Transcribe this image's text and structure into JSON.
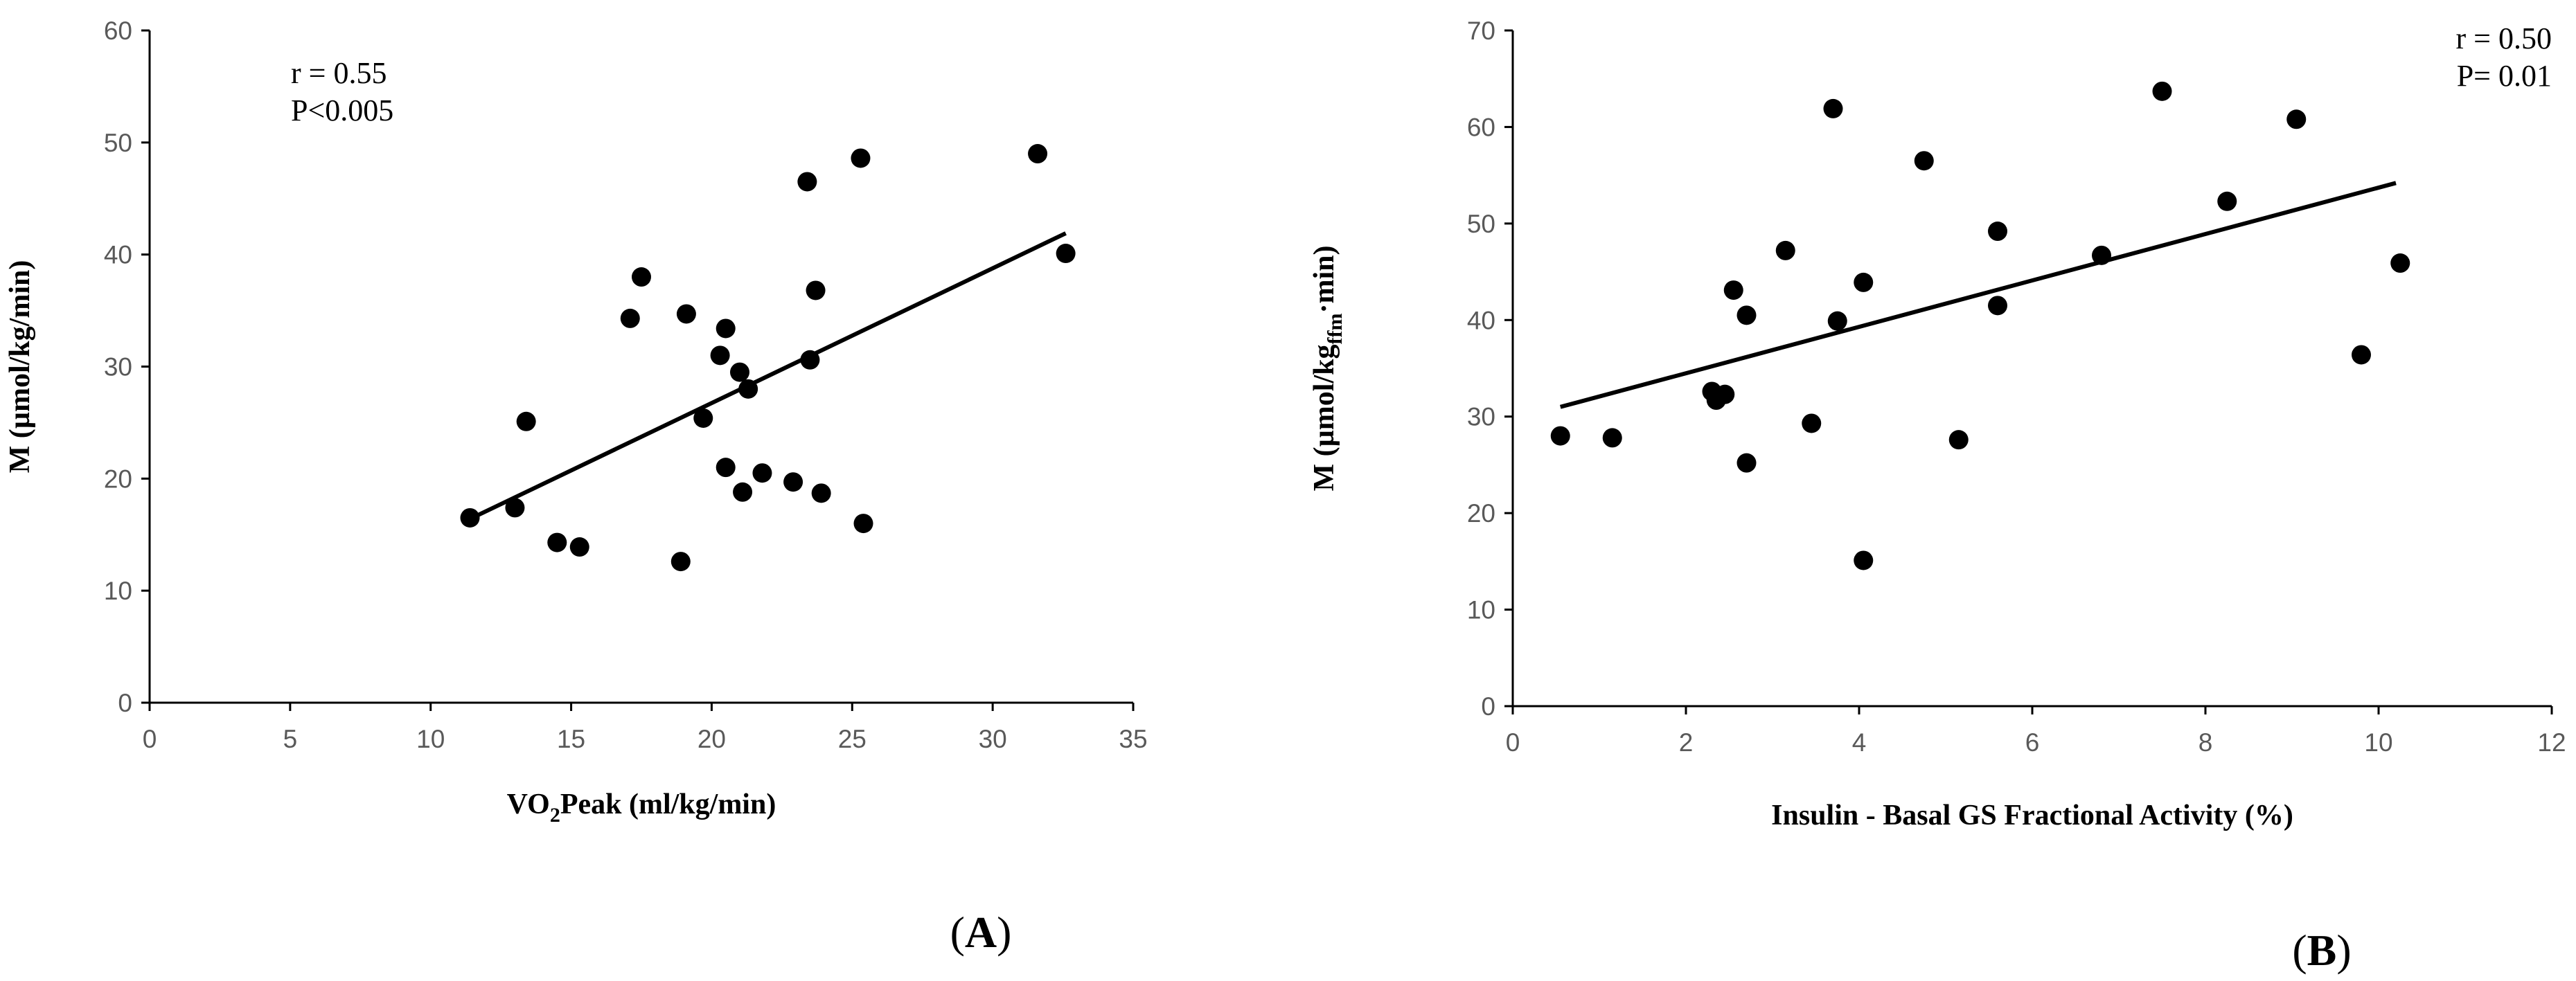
{
  "chart_data": [
    {
      "type": "scatter",
      "panel_label": "A",
      "xlabel": "VO2Peak (ml/kg/min)",
      "xlabel_parts": {
        "pre": "VO",
        "sub": "2",
        "post": "Peak (ml/kg/min)"
      },
      "ylabel": "M (µmol/kg/min)",
      "xlim": [
        0,
        35
      ],
      "ylim": [
        0,
        60
      ],
      "xticks": [
        0,
        5,
        10,
        15,
        20,
        25,
        30,
        35
      ],
      "yticks": [
        0,
        10,
        20,
        30,
        40,
        50,
        60
      ],
      "annotations": [
        "r = 0.55",
        "P<0.005"
      ],
      "annotation_position": "top-left",
      "points": [
        [
          11.4,
          16.5
        ],
        [
          13.0,
          17.4
        ],
        [
          13.4,
          25.1
        ],
        [
          14.5,
          14.3
        ],
        [
          15.3,
          13.9
        ],
        [
          17.1,
          34.3
        ],
        [
          17.5,
          38.0
        ],
        [
          18.9,
          12.6
        ],
        [
          19.1,
          34.7
        ],
        [
          19.7,
          25.4
        ],
        [
          20.3,
          31.0
        ],
        [
          20.5,
          33.4
        ],
        [
          20.5,
          21.0
        ],
        [
          21.0,
          29.5
        ],
        [
          21.1,
          18.8
        ],
        [
          21.3,
          28.0
        ],
        [
          21.8,
          20.5
        ],
        [
          22.9,
          19.7
        ],
        [
          23.4,
          46.5
        ],
        [
          23.5,
          30.6
        ],
        [
          23.7,
          36.8
        ],
        [
          23.9,
          18.7
        ],
        [
          25.3,
          48.6
        ],
        [
          25.4,
          16.0
        ],
        [
          31.6,
          49.0
        ],
        [
          32.6,
          40.1
        ]
      ],
      "trendline": {
        "x": [
          11.4,
          32.6
        ],
        "y": [
          16.4,
          41.9
        ]
      }
    },
    {
      "type": "scatter",
      "panel_label": "B",
      "xlabel": "Insulin  - Basal GS Fractional  Activity  (%)",
      "ylabel": "M (µmol/kgffm·min)",
      "ylabel_parts": {
        "pre": "M (µmol/kg",
        "sub": "ffm",
        "post": "·min)"
      },
      "xlim": [
        0,
        12
      ],
      "ylim": [
        0,
        70
      ],
      "xticks": [
        0,
        2,
        4,
        6,
        8,
        10,
        12
      ],
      "yticks": [
        0,
        10,
        20,
        30,
        40,
        50,
        60,
        70
      ],
      "annotations": [
        "r = 0.50",
        "P= 0.01"
      ],
      "annotation_position": "top-right",
      "points": [
        [
          0.55,
          28.0
        ],
        [
          1.15,
          27.8
        ],
        [
          2.3,
          32.6
        ],
        [
          2.35,
          31.7
        ],
        [
          2.45,
          32.3
        ],
        [
          2.55,
          43.1
        ],
        [
          2.7,
          40.5
        ],
        [
          2.7,
          25.2
        ],
        [
          3.15,
          47.2
        ],
        [
          3.45,
          29.3
        ],
        [
          3.7,
          61.9
        ],
        [
          3.75,
          39.9
        ],
        [
          4.05,
          43.9
        ],
        [
          4.05,
          15.1
        ],
        [
          4.75,
          56.5
        ],
        [
          5.15,
          27.6
        ],
        [
          5.6,
          49.2
        ],
        [
          5.6,
          41.5
        ],
        [
          6.8,
          46.7
        ],
        [
          7.5,
          63.7
        ],
        [
          8.25,
          52.3
        ],
        [
          9.05,
          60.8
        ],
        [
          9.8,
          36.4
        ],
        [
          10.25,
          45.9
        ]
      ],
      "trendline": {
        "x": [
          0.55,
          10.2
        ],
        "y": [
          31.0,
          54.2
        ]
      }
    }
  ]
}
